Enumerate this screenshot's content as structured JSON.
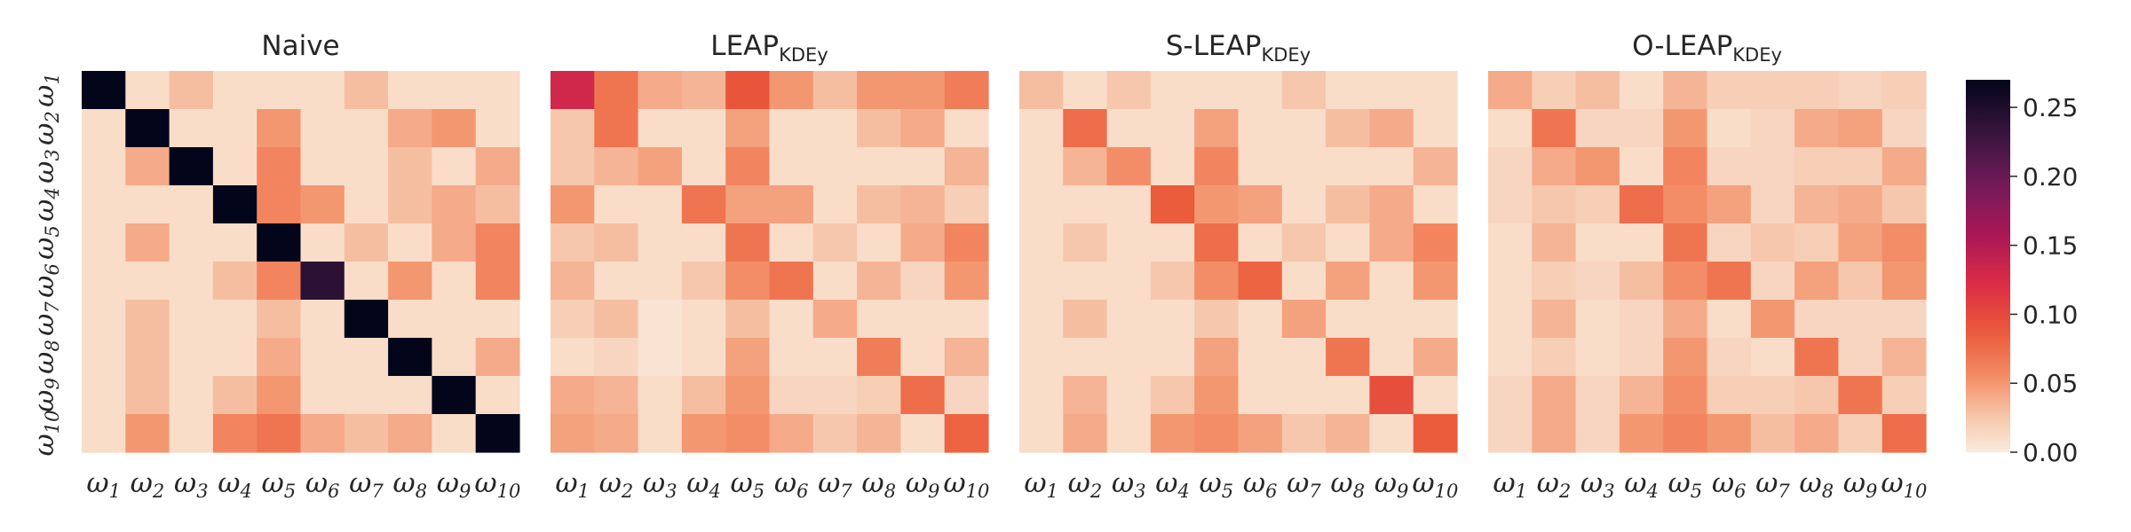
{
  "chart_data": {
    "type": "heatmap",
    "panels": [
      {
        "title": "Naive",
        "title_sub": "",
        "matrix": [
          [
            0.27,
            0.01,
            0.03,
            0.01,
            0.01,
            0.01,
            0.03,
            0.01,
            0.01,
            0.01
          ],
          [
            0.01,
            0.27,
            0.01,
            0.01,
            0.05,
            0.01,
            0.01,
            0.04,
            0.05,
            0.01
          ],
          [
            0.01,
            0.04,
            0.27,
            0.01,
            0.06,
            0.01,
            0.01,
            0.03,
            0.01,
            0.04
          ],
          [
            0.01,
            0.01,
            0.01,
            0.27,
            0.06,
            0.05,
            0.01,
            0.03,
            0.04,
            0.03
          ],
          [
            0.01,
            0.04,
            0.01,
            0.01,
            0.27,
            0.01,
            0.03,
            0.01,
            0.04,
            0.06
          ],
          [
            0.01,
            0.01,
            0.01,
            0.03,
            0.06,
            0.24,
            0.01,
            0.05,
            0.01,
            0.06
          ],
          [
            0.01,
            0.03,
            0.01,
            0.01,
            0.03,
            0.01,
            0.27,
            0.01,
            0.01,
            0.01
          ],
          [
            0.01,
            0.03,
            0.01,
            0.01,
            0.04,
            0.01,
            0.01,
            0.27,
            0.01,
            0.04
          ],
          [
            0.01,
            0.03,
            0.01,
            0.03,
            0.05,
            0.01,
            0.01,
            0.01,
            0.27,
            0.01
          ],
          [
            0.01,
            0.05,
            0.01,
            0.06,
            0.07,
            0.04,
            0.03,
            0.04,
            0.01,
            0.27
          ]
        ]
      },
      {
        "title": "LEAP",
        "title_sub": "KDEy",
        "matrix": [
          [
            0.13,
            0.07,
            0.04,
            0.035,
            0.09,
            0.05,
            0.03,
            0.05,
            0.05,
            0.065
          ],
          [
            0.025,
            0.07,
            0.01,
            0.01,
            0.045,
            0.01,
            0.01,
            0.03,
            0.04,
            0.01
          ],
          [
            0.025,
            0.035,
            0.045,
            0.01,
            0.06,
            0.01,
            0.01,
            0.01,
            0.01,
            0.035
          ],
          [
            0.05,
            0.01,
            0.01,
            0.07,
            0.045,
            0.045,
            0.01,
            0.03,
            0.035,
            0.02
          ],
          [
            0.025,
            0.03,
            0.01,
            0.01,
            0.07,
            0.01,
            0.025,
            0.01,
            0.04,
            0.06
          ],
          [
            0.035,
            0.01,
            0.01,
            0.025,
            0.055,
            0.07,
            0.01,
            0.035,
            0.015,
            0.05
          ],
          [
            0.02,
            0.03,
            0.005,
            0.01,
            0.03,
            0.01,
            0.04,
            0.01,
            0.01,
            0.01
          ],
          [
            0.01,
            0.015,
            0.005,
            0.01,
            0.045,
            0.01,
            0.01,
            0.065,
            0.01,
            0.035
          ],
          [
            0.04,
            0.035,
            0.01,
            0.03,
            0.05,
            0.015,
            0.015,
            0.02,
            0.075,
            0.015
          ],
          [
            0.045,
            0.04,
            0.01,
            0.05,
            0.055,
            0.04,
            0.025,
            0.035,
            0.01,
            0.08
          ]
        ]
      },
      {
        "title": "S-LEAP",
        "title_sub": "KDEy",
        "matrix": [
          [
            0.03,
            0.01,
            0.025,
            0.01,
            0.01,
            0.01,
            0.025,
            0.01,
            0.01,
            0.01
          ],
          [
            0.01,
            0.075,
            0.01,
            0.01,
            0.045,
            0.01,
            0.01,
            0.03,
            0.04,
            0.01
          ],
          [
            0.01,
            0.035,
            0.055,
            0.01,
            0.06,
            0.01,
            0.01,
            0.01,
            0.01,
            0.035
          ],
          [
            0.01,
            0.01,
            0.01,
            0.085,
            0.05,
            0.045,
            0.01,
            0.03,
            0.04,
            0.01
          ],
          [
            0.01,
            0.025,
            0.01,
            0.01,
            0.075,
            0.01,
            0.025,
            0.01,
            0.04,
            0.06
          ],
          [
            0.01,
            0.01,
            0.01,
            0.025,
            0.055,
            0.08,
            0.01,
            0.045,
            0.01,
            0.05
          ],
          [
            0.01,
            0.03,
            0.01,
            0.01,
            0.025,
            0.01,
            0.045,
            0.01,
            0.01,
            0.01
          ],
          [
            0.01,
            0.01,
            0.01,
            0.01,
            0.045,
            0.01,
            0.01,
            0.07,
            0.01,
            0.04
          ],
          [
            0.01,
            0.035,
            0.01,
            0.025,
            0.05,
            0.01,
            0.01,
            0.01,
            0.095,
            0.01
          ],
          [
            0.01,
            0.04,
            0.01,
            0.05,
            0.055,
            0.045,
            0.025,
            0.035,
            0.01,
            0.085
          ]
        ]
      },
      {
        "title": "O-LEAP",
        "title_sub": "KDEy",
        "matrix": [
          [
            0.04,
            0.02,
            0.03,
            0.01,
            0.035,
            0.02,
            0.02,
            0.02,
            0.015,
            0.02
          ],
          [
            0.01,
            0.07,
            0.015,
            0.015,
            0.05,
            0.01,
            0.015,
            0.04,
            0.045,
            0.015
          ],
          [
            0.015,
            0.04,
            0.05,
            0.01,
            0.06,
            0.015,
            0.015,
            0.02,
            0.02,
            0.04
          ],
          [
            0.015,
            0.025,
            0.02,
            0.075,
            0.055,
            0.045,
            0.015,
            0.035,
            0.04,
            0.025
          ],
          [
            0.01,
            0.035,
            0.01,
            0.01,
            0.07,
            0.015,
            0.025,
            0.02,
            0.045,
            0.055
          ],
          [
            0.01,
            0.02,
            0.015,
            0.03,
            0.055,
            0.07,
            0.015,
            0.045,
            0.025,
            0.05
          ],
          [
            0.01,
            0.035,
            0.01,
            0.015,
            0.04,
            0.01,
            0.05,
            0.015,
            0.015,
            0.015
          ],
          [
            0.01,
            0.02,
            0.01,
            0.015,
            0.05,
            0.015,
            0.01,
            0.07,
            0.015,
            0.035
          ],
          [
            0.015,
            0.04,
            0.015,
            0.035,
            0.055,
            0.02,
            0.02,
            0.025,
            0.07,
            0.02
          ],
          [
            0.015,
            0.04,
            0.015,
            0.05,
            0.06,
            0.05,
            0.03,
            0.04,
            0.02,
            0.075
          ]
        ]
      }
    ],
    "x_ticks": [
      "1",
      "2",
      "3",
      "4",
      "5",
      "6",
      "7",
      "8",
      "9",
      "10"
    ],
    "y_ticks": [
      "1",
      "2",
      "3",
      "4",
      "5",
      "6",
      "7",
      "8",
      "9",
      "10"
    ],
    "tick_symbol": "ω",
    "colorbar": {
      "colormap": "rocket_r",
      "min": 0.0,
      "max": 0.27,
      "ticks": [
        0.0,
        0.05,
        0.1,
        0.15,
        0.2,
        0.25
      ],
      "tick_labels": [
        "0.00",
        "0.05",
        "0.10",
        "0.15",
        "0.20",
        "0.25"
      ]
    }
  }
}
